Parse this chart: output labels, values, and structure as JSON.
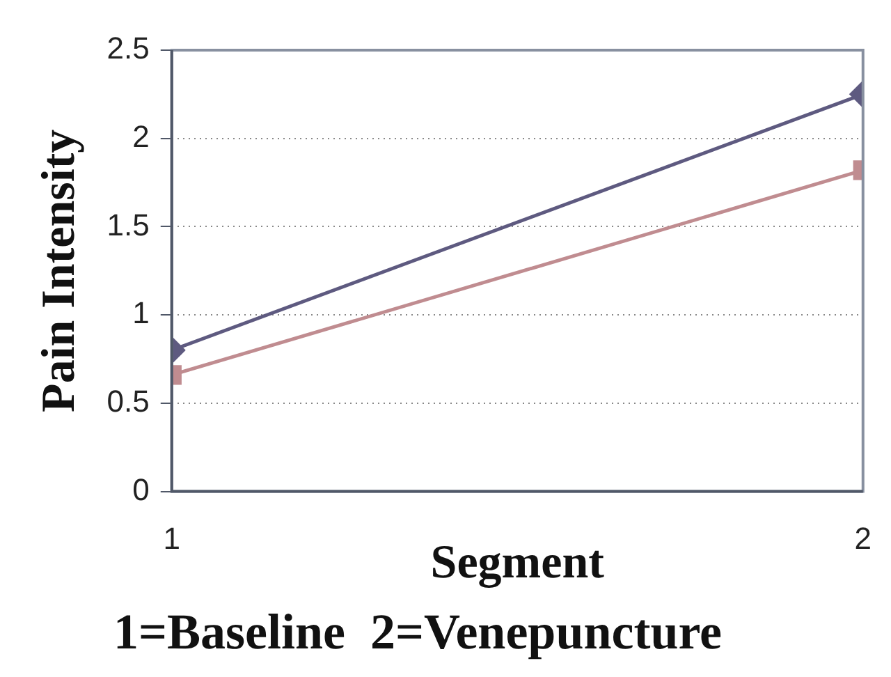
{
  "chart_data": {
    "type": "line",
    "ylabel": "Pain Intensity",
    "xlabel": "Segment",
    "annotations": [
      "1=Baseline  2=Venepuncture"
    ],
    "x": [
      1,
      2
    ],
    "xlim": [
      1,
      2
    ],
    "xticks": [
      1,
      2
    ],
    "ylim": [
      0,
      2.5
    ],
    "yticks": [
      0,
      0.5,
      1,
      1.5,
      2,
      2.5
    ],
    "grid": "y",
    "line_style": "solid",
    "series": [
      {
        "color": "#5e5a80",
        "values": [
          0.8,
          2.25
        ],
        "marker": "diamond"
      },
      {
        "color": "#c08c90",
        "values": [
          0.66,
          1.82
        ],
        "marker": "square"
      }
    ]
  }
}
